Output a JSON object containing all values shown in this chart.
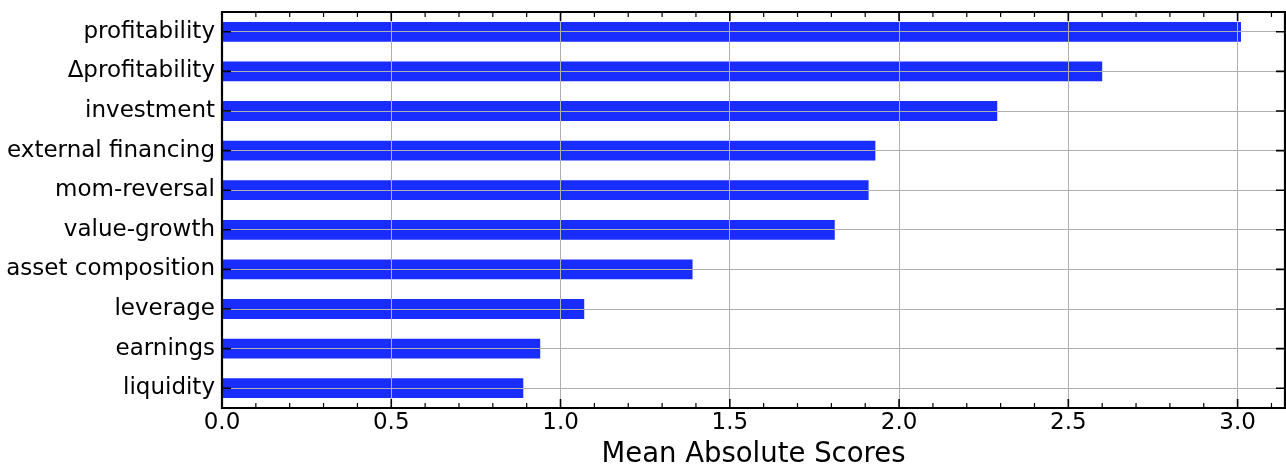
{
  "chart_data": {
    "type": "bar",
    "orientation": "horizontal",
    "categories": [
      "profitability",
      "Δprofitability",
      "investment",
      "external financing",
      "mom-reversal",
      "value-growth",
      "asset composition",
      "leverage",
      "earnings",
      "liquidity"
    ],
    "values": [
      3.01,
      2.6,
      2.29,
      1.93,
      1.91,
      1.81,
      1.39,
      1.07,
      0.94,
      0.89
    ],
    "color": "#1a2dff",
    "xlabel": "Mean Absolute Scores",
    "xlim": [
      0,
      3.14
    ],
    "xticks": [
      {
        "value": 0,
        "label": "0.0"
      },
      {
        "value": 0.1,
        "label": null
      },
      {
        "value": 0.2,
        "label": null
      },
      {
        "value": 0.3,
        "label": null
      },
      {
        "value": 0.4,
        "label": null
      },
      0.5,
      {
        "value": 0.6,
        "label": null
      },
      {
        "value": 0.7,
        "label": null
      },
      {
        "value": 0.8,
        "label": null
      },
      {
        "value": 0.9,
        "label": null
      },
      {
        "value": 1,
        "label": "1.0"
      },
      {
        "value": 1.1,
        "label": null
      },
      {
        "value": 1.2,
        "label": null
      },
      {
        "value": 1.3,
        "label": null
      },
      {
        "value": 1.4,
        "label": null
      },
      1.5,
      {
        "value": 1.6,
        "label": null
      },
      {
        "value": 1.7,
        "label": null
      },
      {
        "value": 1.8,
        "label": null
      },
      {
        "value": 1.9,
        "label": null
      },
      {
        "value": 2,
        "label": "2.0"
      },
      {
        "value": 2.1,
        "label": null
      },
      {
        "value": 2.2,
        "label": null
      },
      {
        "value": 2.3,
        "label": null
      },
      {
        "value": 2.4,
        "label": null
      },
      2.5,
      {
        "value": 2.6,
        "label": null
      },
      {
        "value": 2.7,
        "label": null
      },
      {
        "value": 2.8,
        "label": null
      },
      {
        "value": 2.9,
        "label": null
      },
      {
        "value": 3,
        "label": "3.0"
      },
      {
        "value": 3.1,
        "label": null
      }
    ],
    "grid": true
  }
}
